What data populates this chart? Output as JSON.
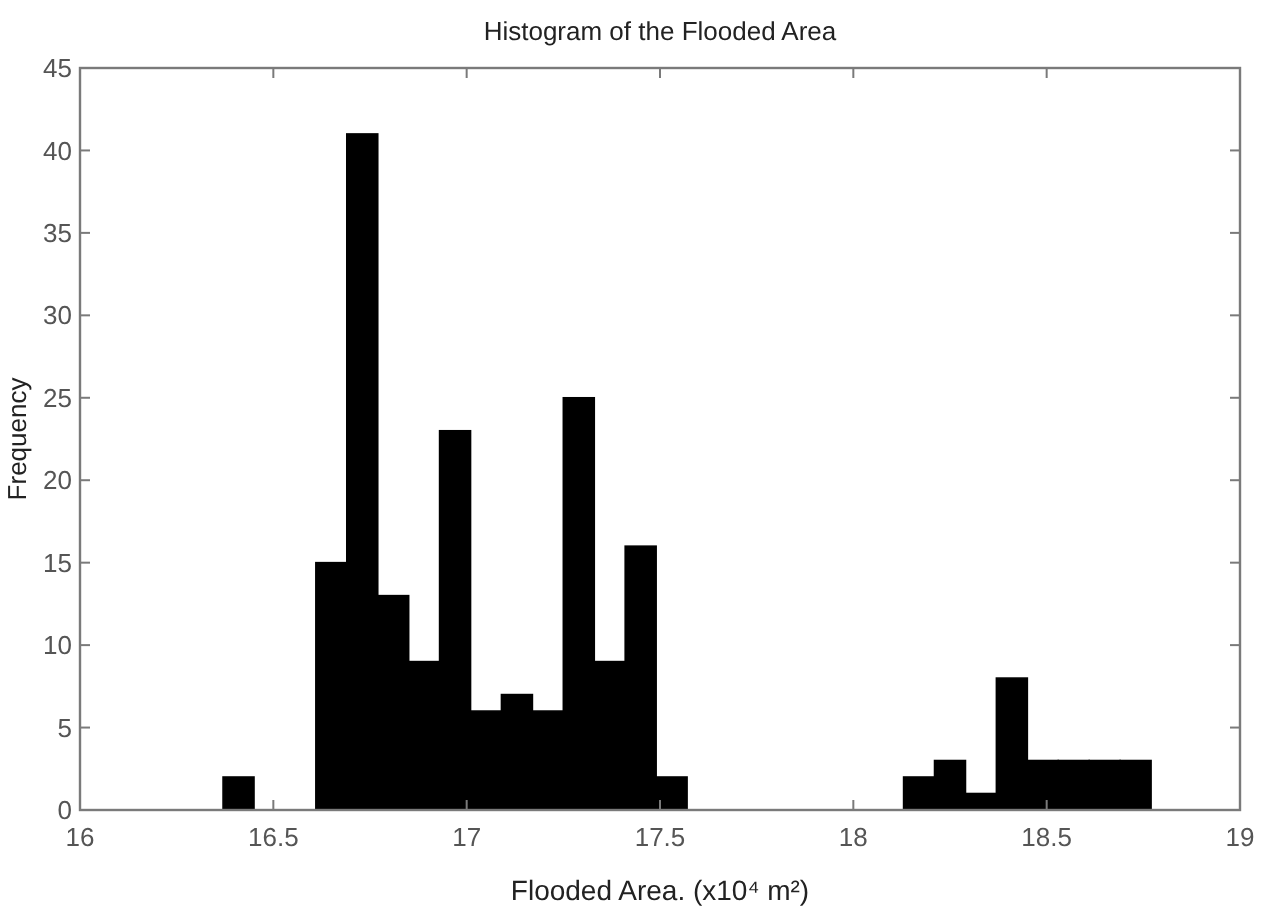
{
  "chart_data": {
    "type": "histogram",
    "title": "Histogram of the Flooded Area",
    "xlabel": "Flooded Area. (x10⁴ m²)",
    "ylabel": "Frequency",
    "bins": [
      16.37,
      16.45,
      16.61,
      16.69,
      16.77,
      16.85,
      16.93,
      17.01,
      17.09,
      17.17,
      17.25,
      17.33,
      17.41,
      17.49,
      17.57,
      18.13,
      18.21,
      18.29,
      18.37,
      18.45,
      18.53,
      18.61,
      18.69,
      18.77
    ],
    "values": [
      2,
      0,
      15,
      41,
      13,
      9,
      23,
      6,
      7,
      6,
      25,
      9,
      16,
      2,
      0,
      2,
      3,
      1,
      8,
      3,
      3,
      3,
      3
    ],
    "color": "#000000",
    "xlim": [
      16,
      19
    ],
    "ylim": [
      0,
      45
    ],
    "xticks": [
      16,
      16.5,
      17,
      17.5,
      18,
      18.5,
      19
    ],
    "yticks": [
      0,
      5,
      10,
      15,
      20,
      25,
      30,
      35,
      40,
      45
    ]
  }
}
